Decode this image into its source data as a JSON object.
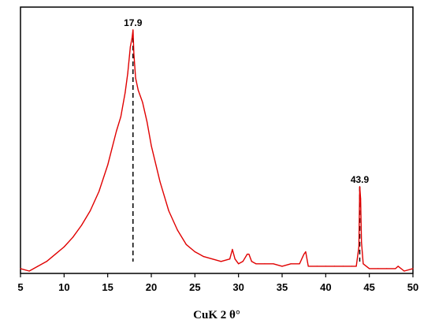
{
  "chart_data": {
    "type": "line",
    "xlabel": "CuK 2 θ°",
    "ylabel": "",
    "xlim": [
      5,
      50
    ],
    "ylim": [
      0,
      1
    ],
    "y_ticks_shown": false,
    "x_ticks": [
      5,
      10,
      15,
      20,
      25,
      30,
      35,
      40,
      45,
      50
    ],
    "x_tick_labels": [
      "5",
      "10",
      "15",
      "20",
      "25",
      "30",
      "35",
      "40",
      "45",
      "50"
    ],
    "grid": false,
    "legend": "none",
    "series": [
      {
        "color": "#e00000",
        "x": [
          5,
          6,
          7,
          8,
          9,
          10,
          11,
          12,
          13,
          14,
          15,
          15.5,
          16,
          16.5,
          17,
          17.3,
          17.6,
          17.8,
          17.9,
          18.0,
          18.2,
          18.5,
          19,
          19.5,
          20,
          21,
          22,
          23,
          24,
          25,
          26,
          27,
          28,
          29,
          29.3,
          29.6,
          30,
          30.5,
          31,
          31.2,
          31.5,
          32,
          33,
          34,
          35,
          36,
          37,
          37.5,
          37.7,
          38,
          39,
          40,
          41,
          42,
          43,
          43.5,
          43.8,
          43.9,
          44.0,
          44.1,
          44.3,
          45,
          46,
          47,
          48,
          48.3,
          49,
          50
        ],
        "y": [
          0.01,
          0.0,
          0.02,
          0.04,
          0.07,
          0.1,
          0.14,
          0.19,
          0.25,
          0.33,
          0.44,
          0.51,
          0.58,
          0.64,
          0.74,
          0.82,
          0.93,
          0.97,
          1.0,
          0.9,
          0.8,
          0.75,
          0.7,
          0.62,
          0.52,
          0.37,
          0.25,
          0.17,
          0.11,
          0.08,
          0.06,
          0.05,
          0.04,
          0.05,
          0.09,
          0.05,
          0.03,
          0.04,
          0.07,
          0.07,
          0.04,
          0.03,
          0.03,
          0.03,
          0.02,
          0.03,
          0.03,
          0.07,
          0.08,
          0.02,
          0.02,
          0.02,
          0.02,
          0.02,
          0.02,
          0.02,
          0.1,
          0.35,
          0.3,
          0.12,
          0.03,
          0.01,
          0.01,
          0.01,
          0.01,
          0.02,
          0.0,
          0.01
        ]
      }
    ],
    "annotations": [
      {
        "x": 17.9,
        "y": 1.0,
        "label": "17.9",
        "style": "dashed-vertical"
      },
      {
        "x": 43.9,
        "y": 0.35,
        "label": "43.9",
        "style": "dashed-vertical"
      }
    ]
  }
}
